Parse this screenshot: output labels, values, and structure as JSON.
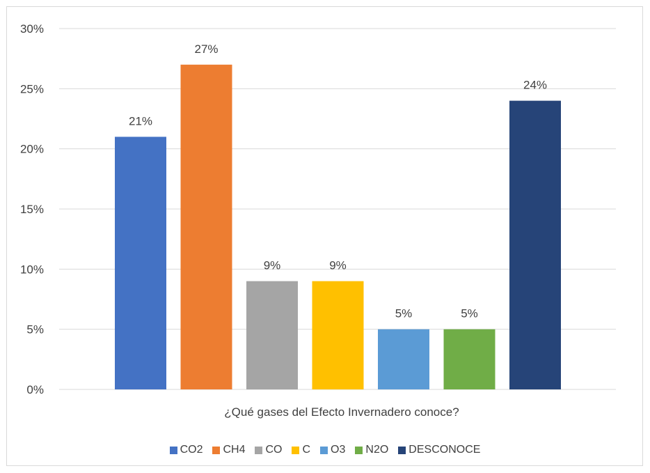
{
  "chart_data": {
    "type": "bar",
    "title": "",
    "xlabel": "¿Qué gases del Efecto Invernadero conoce?",
    "ylabel": "",
    "ylim": [
      0,
      30
    ],
    "yticks": [
      "0%",
      "5%",
      "10%",
      "15%",
      "20%",
      "25%",
      "30%"
    ],
    "ytick_values": [
      0,
      5,
      10,
      15,
      20,
      25,
      30
    ],
    "grid": true,
    "legend_position": "bottom",
    "series": [
      {
        "name": "CO2",
        "value": 21,
        "label": "21%",
        "color": "#4472C4"
      },
      {
        "name": "CH4",
        "value": 27,
        "label": "27%",
        "color": "#ED7D31"
      },
      {
        "name": "CO",
        "value": 9,
        "label": "9%",
        "color": "#A5A5A5"
      },
      {
        "name": "C",
        "value": 9,
        "label": "9%",
        "color": "#FFC000"
      },
      {
        "name": "O3",
        "value": 5,
        "label": "5%",
        "color": "#5B9BD5"
      },
      {
        "name": "N2O",
        "value": 5,
        "label": "5%",
        "color": "#70AD47"
      },
      {
        "name": "DESCONOCE",
        "value": 24,
        "label": "24%",
        "color": "#264478"
      }
    ]
  }
}
